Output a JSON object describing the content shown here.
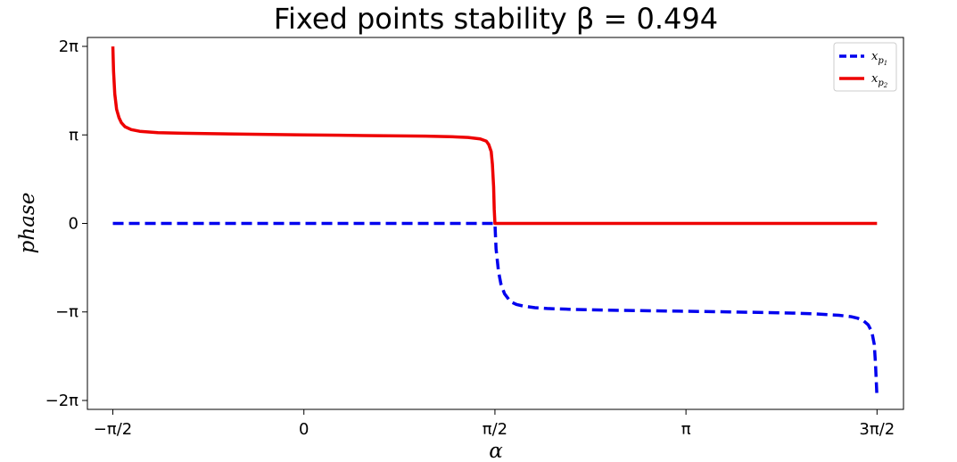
{
  "chart_data": {
    "type": "line",
    "title": "Fixed points stability β = 0.494",
    "xlabel": "α",
    "ylabel": "phase",
    "xlim": [
      -1.78,
      4.93
    ],
    "ylim": [
      -6.6,
      6.6
    ],
    "xticks": [
      {
        "value": -1.5708,
        "label": "−π/2"
      },
      {
        "value": 0,
        "label": "0"
      },
      {
        "value": 1.5708,
        "label": "π/2"
      },
      {
        "value": 3.1416,
        "label": "π"
      },
      {
        "value": 4.7124,
        "label": "3π/2"
      }
    ],
    "yticks": [
      {
        "value": 6.2832,
        "label": "2π"
      },
      {
        "value": 3.1416,
        "label": "π"
      },
      {
        "value": 0,
        "label": "0"
      },
      {
        "value": -3.1416,
        "label": "−π"
      },
      {
        "value": -6.2832,
        "label": "−2π"
      }
    ],
    "legend": {
      "placement": "top-right",
      "entries": [
        {
          "label": "x",
          "sub": "p",
          "subsub": "1"
        },
        {
          "label": "x",
          "sub": "p",
          "subsub": "2"
        }
      ]
    },
    "grid": false,
    "series": [
      {
        "color": "#0000ee",
        "dash": "dashed",
        "x": [
          -1.5708,
          -1.0,
          -0.5,
          0.0,
          0.5,
          1.0,
          1.2,
          1.4,
          1.5,
          1.54,
          1.56,
          1.5708,
          1.58,
          1.6,
          1.62,
          1.65,
          1.7,
          1.75,
          1.8,
          1.9,
          2.0,
          2.2,
          2.5,
          3.0,
          3.5,
          4.0,
          4.2,
          4.4,
          4.5,
          4.55,
          4.6,
          4.64,
          4.67,
          4.69,
          4.7,
          4.7124
        ],
        "y": [
          0,
          0,
          0,
          0,
          0,
          0,
          0,
          0,
          0,
          0,
          0,
          0,
          -0.9,
          -1.7,
          -2.15,
          -2.5,
          -2.78,
          -2.88,
          -2.93,
          -2.99,
          -3.02,
          -3.05,
          -3.08,
          -3.11,
          -3.14,
          -3.18,
          -3.21,
          -3.26,
          -3.31,
          -3.36,
          -3.45,
          -3.6,
          -3.85,
          -4.3,
          -5.0,
          -6.2
        ]
      },
      {
        "color": "#ee0000",
        "dash": "solid",
        "x": [
          -1.5708,
          -1.565,
          -1.555,
          -1.54,
          -1.52,
          -1.5,
          -1.47,
          -1.42,
          -1.35,
          -1.2,
          -1.0,
          -0.5,
          0.0,
          0.5,
          1.0,
          1.2,
          1.35,
          1.45,
          1.5,
          1.52,
          1.54,
          1.55,
          1.56,
          1.565,
          1.5708,
          1.6,
          2.0,
          3.0,
          4.0,
          4.7124
        ],
        "y": [
          6.28,
          5.4,
          4.6,
          4.05,
          3.75,
          3.57,
          3.43,
          3.33,
          3.27,
          3.22,
          3.2,
          3.17,
          3.14,
          3.12,
          3.1,
          3.08,
          3.05,
          3.0,
          2.92,
          2.8,
          2.55,
          2.1,
          1.3,
          0.5,
          0,
          0,
          0,
          0,
          0,
          0
        ]
      }
    ]
  }
}
